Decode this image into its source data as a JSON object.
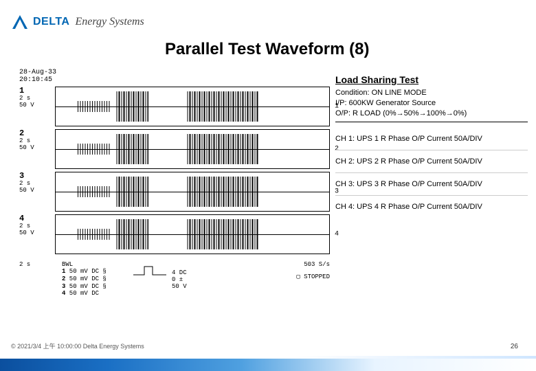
{
  "header": {
    "brand": "DELTA",
    "sub": "Energy Systems"
  },
  "title": "Parallel Test Waveform (8)",
  "scope": {
    "date1": "28-Aug-33",
    "date2": "20:10:45",
    "timebase": "2 s",
    "vdiv": "50 V",
    "channels": [
      {
        "n": "1"
      },
      {
        "n": "2"
      },
      {
        "n": "3"
      },
      {
        "n": "4"
      }
    ],
    "burst_layout": {
      "sparse1": {
        "left_pct": 8,
        "width_pct": 12
      },
      "dense1": {
        "left_pct": 22,
        "width_pct": 12
      },
      "dense2": {
        "left_pct": 48,
        "width_pct": 26
      }
    },
    "footer": {
      "tb": "2 s",
      "bwl": "BWL",
      "lines": [
        "50 mV DC §",
        "50 mV DC §",
        "50 mV DC §",
        "50 mV DC"
      ],
      "dc_label": "4  DC 0 ± 50 V",
      "rate": "503 S/s",
      "stopped": "▢ STOPPED"
    }
  },
  "right": {
    "title": "Load Sharing Test",
    "cond1": "Condition: ON LINE MODE",
    "cond2": "I/P: 600KW Generator Source",
    "cond3": "O/P: R LOAD (0%→50%→100%→0%)",
    "ch1": "CH 1: UPS 1 R Phase O/P Current 50A/DIV",
    "ch2": "CH 2: UPS 2 R Phase O/P Current 50A/DIV",
    "ch3": "CH 3: UPS 3 R Phase O/P Current 50A/DIV",
    "ch4": "CH 4: UPS 4 R Phase O/P Current 50A/DIV"
  },
  "footer": {
    "copyright": "© 2021/3/4 上午 10:00:00 Delta Energy Systems",
    "page": "26"
  }
}
